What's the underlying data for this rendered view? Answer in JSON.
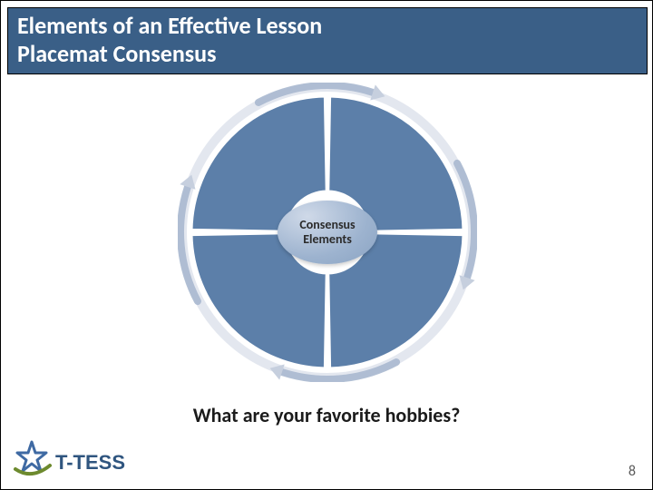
{
  "header": {
    "title_line1": "Elements of an Effective Lesson",
    "title_line2": "Placemat Consensus",
    "bg_color": "#3a5f87",
    "text_color": "#ffffff",
    "title_fontsize": 26
  },
  "diagram": {
    "type": "cycle",
    "outer_ring_color": "#d0d7e4",
    "segment_fill": "#5c7fa9",
    "segment_stroke": "#ffffff",
    "arrow_color": "#a9b8cf",
    "arrowhead_color": "#c6cfde",
    "center_bubble": {
      "text": "Consensus\nElements",
      "fill_light": "#cfd9e8",
      "fill_dark": "#8aa3c2",
      "text_color": "#2b2b2b",
      "fontsize": 14
    },
    "segments": 4,
    "outer_radius": 150,
    "inner_radius": 45,
    "gap_deg": 2
  },
  "question": {
    "text": "What are your favorite hobbies?",
    "fontsize": 22,
    "color": "#1b1b1b"
  },
  "logo": {
    "brand_text": "T-TESS",
    "star_color": "#3f6aa3",
    "swoosh_color": "#6d8a2e",
    "text_fill": "#2f557f",
    "text_stroke": "#2f557f"
  },
  "page_number": "8",
  "slide_border_color": "#000000",
  "background_color": "#ffffff"
}
